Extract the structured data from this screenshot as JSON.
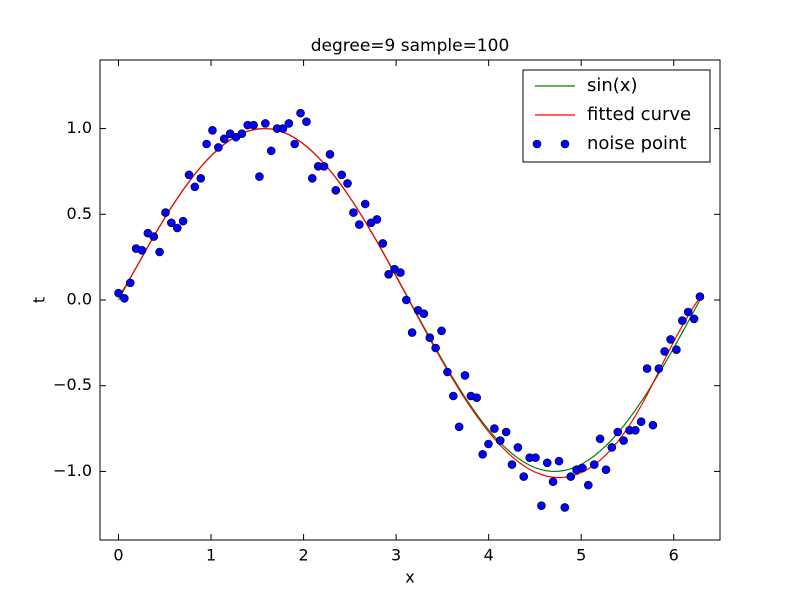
{
  "chart_data": {
    "type": "line",
    "title": "degree=9 sample=100",
    "x_label": "x",
    "y_label": "t",
    "x": [
      0.0,
      0.063,
      0.127,
      0.19,
      0.254,
      0.317,
      0.381,
      0.444,
      0.508,
      0.571,
      0.635,
      0.698,
      0.762,
      0.825,
      0.889,
      0.952,
      1.015,
      1.079,
      1.142,
      1.206,
      1.269,
      1.333,
      1.396,
      1.46,
      1.523,
      1.587,
      1.65,
      1.714,
      1.777,
      1.841,
      1.904,
      1.967,
      2.031,
      2.094,
      2.158,
      2.221,
      2.285,
      2.348,
      2.412,
      2.475,
      2.539,
      2.602,
      2.666,
      2.729,
      2.793,
      2.856,
      2.919,
      2.983,
      3.046,
      3.11,
      3.173,
      3.237,
      3.3,
      3.364,
      3.427,
      3.491,
      3.554,
      3.618,
      3.681,
      3.744,
      3.808,
      3.871,
      3.935,
      3.998,
      4.062,
      4.125,
      4.189,
      4.252,
      4.316,
      4.379,
      4.443,
      4.506,
      4.57,
      4.633,
      4.696,
      4.76,
      4.823,
      4.887,
      4.95,
      5.014,
      5.077,
      5.141,
      5.204,
      5.268,
      5.331,
      5.395,
      5.458,
      5.522,
      5.585,
      5.648,
      5.712,
      5.775,
      5.839,
      5.902,
      5.966,
      6.029,
      6.093,
      6.156,
      6.22,
      6.283
    ],
    "series": [
      {
        "name": "sin(x)",
        "type": "line",
        "color": "#008000",
        "values": [
          0.0,
          0.063,
          0.127,
          0.189,
          0.251,
          0.312,
          0.372,
          0.43,
          0.486,
          0.541,
          0.593,
          0.643,
          0.69,
          0.735,
          0.776,
          0.815,
          0.85,
          0.881,
          0.91,
          0.934,
          0.955,
          0.972,
          0.985,
          0.994,
          0.999,
          1.0,
          0.997,
          0.99,
          0.979,
          0.964,
          0.945,
          0.922,
          0.896,
          0.866,
          0.832,
          0.796,
          0.756,
          0.713,
          0.667,
          0.618,
          0.567,
          0.514,
          0.458,
          0.401,
          0.342,
          0.282,
          0.22,
          0.158,
          0.095,
          0.032,
          -0.032,
          -0.095,
          -0.158,
          -0.22,
          -0.282,
          -0.342,
          -0.401,
          -0.458,
          -0.514,
          -0.567,
          -0.618,
          -0.667,
          -0.713,
          -0.756,
          -0.796,
          -0.832,
          -0.866,
          -0.896,
          -0.922,
          -0.945,
          -0.964,
          -0.979,
          -0.99,
          -0.997,
          -1.0,
          -0.999,
          -0.994,
          -0.985,
          -0.972,
          -0.955,
          -0.934,
          -0.91,
          -0.881,
          -0.85,
          -0.815,
          -0.776,
          -0.735,
          -0.69,
          -0.643,
          -0.593,
          -0.541,
          -0.486,
          -0.43,
          -0.372,
          -0.312,
          -0.251,
          -0.189,
          -0.127,
          -0.063,
          0.0
        ]
      },
      {
        "name": "fitted curve",
        "type": "line",
        "color": "#ff0000",
        "values": [
          0.02,
          0.07,
          0.128,
          0.188,
          0.249,
          0.31,
          0.37,
          0.428,
          0.485,
          0.54,
          0.592,
          0.642,
          0.689,
          0.734,
          0.775,
          0.813,
          0.848,
          0.88,
          0.908,
          0.932,
          0.953,
          0.97,
          0.984,
          0.993,
          0.998,
          1.0,
          0.998,
          0.991,
          0.98,
          0.965,
          0.946,
          0.923,
          0.897,
          0.867,
          0.833,
          0.796,
          0.756,
          0.713,
          0.667,
          0.618,
          0.567,
          0.513,
          0.457,
          0.399,
          0.34,
          0.279,
          0.217,
          0.154,
          0.091,
          0.027,
          -0.037,
          -0.101,
          -0.164,
          -0.227,
          -0.289,
          -0.35,
          -0.409,
          -0.467,
          -0.523,
          -0.577,
          -0.628,
          -0.677,
          -0.724,
          -0.768,
          -0.809,
          -0.847,
          -0.882,
          -0.914,
          -0.942,
          -0.967,
          -0.988,
          -1.005,
          -1.018,
          -1.028,
          -1.034,
          -1.036,
          -1.034,
          -1.028,
          -1.018,
          -1.004,
          -0.985,
          -0.962,
          -0.935,
          -0.903,
          -0.867,
          -0.826,
          -0.781,
          -0.731,
          -0.676,
          -0.617,
          -0.553,
          -0.486,
          -0.417,
          -0.347,
          -0.279,
          -0.213,
          -0.15,
          -0.091,
          -0.035,
          0.015
        ]
      },
      {
        "name": "noise point",
        "type": "scatter",
        "color": "#0000ff",
        "values": [
          0.04,
          0.01,
          0.1,
          0.3,
          0.29,
          0.39,
          0.37,
          0.28,
          0.51,
          0.45,
          0.42,
          0.46,
          0.73,
          0.66,
          0.71,
          0.91,
          0.99,
          0.89,
          0.94,
          0.97,
          0.95,
          0.97,
          1.02,
          1.02,
          0.72,
          1.03,
          0.87,
          1.0,
          1.0,
          1.03,
          0.91,
          1.09,
          1.04,
          0.71,
          0.78,
          0.78,
          0.85,
          0.64,
          0.73,
          0.68,
          0.51,
          0.44,
          0.56,
          0.45,
          0.47,
          0.33,
          0.15,
          0.18,
          0.16,
          0.0,
          -0.19,
          -0.06,
          -0.08,
          -0.22,
          -0.28,
          -0.18,
          -0.42,
          -0.56,
          -0.74,
          -0.44,
          -0.56,
          -0.57,
          -0.9,
          -0.84,
          -0.75,
          -0.82,
          -0.77,
          -0.96,
          -0.86,
          -1.03,
          -0.92,
          -0.92,
          -1.2,
          -0.95,
          -1.06,
          -0.94,
          -1.21,
          -1.03,
          -0.99,
          -0.98,
          -1.08,
          -0.96,
          -0.81,
          -0.99,
          -0.86,
          -0.77,
          -0.82,
          -0.76,
          -0.76,
          -0.71,
          -0.4,
          -0.73,
          -0.4,
          -0.3,
          -0.23,
          -0.29,
          -0.12,
          -0.07,
          -0.11,
          0.02
        ]
      }
    ],
    "xlim": [
      -0.2,
      6.5
    ],
    "ylim": [
      -1.4,
      1.4
    ],
    "xticks": [
      0,
      1,
      2,
      3,
      4,
      5,
      6
    ],
    "yticks": [
      {
        "value": -1,
        "label": "−1.0"
      },
      {
        "value": -0.5,
        "label": "−0.5"
      },
      {
        "value": 0,
        "label": "0.0"
      },
      {
        "value": 0.5,
        "label": "0.5"
      },
      {
        "value": 1,
        "label": "1.0"
      }
    ],
    "legend": "upper right"
  }
}
